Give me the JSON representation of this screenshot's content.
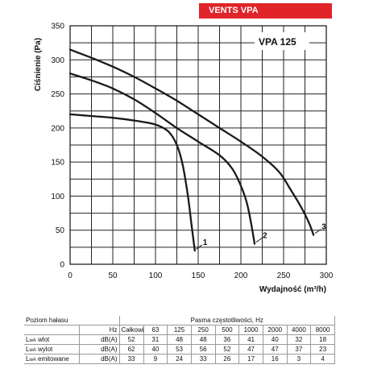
{
  "banner": "VENTS VPA",
  "chart_data": {
    "type": "line",
    "title": "VPA 125",
    "ylabel": "Ciśnienie (Pa)",
    "xlabel": "Wydajność (m³/h)",
    "xlim": [
      0,
      300
    ],
    "ylim": [
      0,
      350
    ],
    "xticks": [
      0,
      50,
      100,
      150,
      200,
      250,
      300
    ],
    "yticks": [
      0,
      50,
      100,
      150,
      200,
      250,
      300,
      350
    ],
    "grid": true,
    "series": [
      {
        "name": "1",
        "color": "#1a1a1a",
        "x": [
          0,
          20,
          50,
          80,
          100,
          115,
          125,
          132,
          138,
          142,
          146
        ],
        "y": [
          220,
          218,
          215,
          210,
          205,
          195,
          175,
          145,
          100,
          60,
          20
        ]
      },
      {
        "name": "2",
        "color": "#1a1a1a",
        "x": [
          0,
          25,
          50,
          75,
          100,
          125,
          150,
          175,
          190,
          200,
          207,
          212,
          216
        ],
        "y": [
          280,
          270,
          258,
          242,
          222,
          200,
          180,
          160,
          140,
          115,
          90,
          60,
          30
        ]
      },
      {
        "name": "3",
        "color": "#1a1a1a",
        "x": [
          0,
          25,
          50,
          75,
          100,
          125,
          150,
          175,
          200,
          225,
          245,
          258,
          270,
          280,
          285
        ],
        "y": [
          315,
          303,
          290,
          275,
          258,
          240,
          220,
          200,
          180,
          158,
          135,
          110,
          85,
          60,
          43
        ]
      }
    ]
  },
  "noise": {
    "left_title": "Poziom hałasu",
    "bands_title": "Pasma częstotliwości, Hz",
    "hz_unit": "Hz",
    "columns": [
      "Całkowita",
      "63",
      "125",
      "250",
      "500",
      "1000",
      "2000",
      "4000",
      "8000"
    ],
    "rows": [
      {
        "label": "L",
        "sub": "wA",
        "suffix": " wlot",
        "unit": "dB(A)",
        "values": [
          "52",
          "31",
          "48",
          "48",
          "36",
          "41",
          "40",
          "32",
          "18"
        ]
      },
      {
        "label": "L",
        "sub": "wA",
        "suffix": " wylot",
        "unit": "dB(A)",
        "values": [
          "62",
          "40",
          "53",
          "56",
          "52",
          "47",
          "47",
          "37",
          "23"
        ]
      },
      {
        "label": "L",
        "sub": "wA",
        "suffix": " emitowane",
        "unit": "dB(A)",
        "values": [
          "33",
          "9",
          "24",
          "33",
          "26",
          "17",
          "16",
          "3",
          "4"
        ]
      }
    ]
  }
}
